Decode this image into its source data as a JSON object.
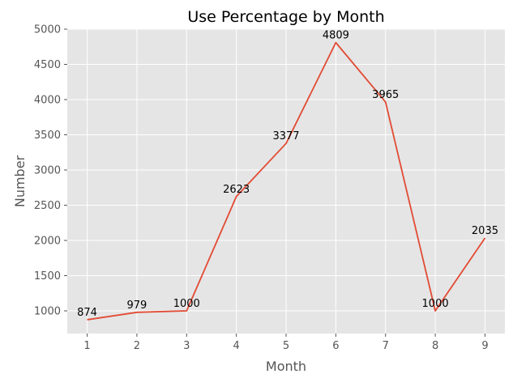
{
  "chart_data": {
    "type": "line",
    "title": "Use Percentage by Month",
    "xlabel": "Month",
    "ylabel": "Number",
    "x": [
      1,
      2,
      3,
      4,
      5,
      6,
      7,
      8,
      9
    ],
    "series": [
      {
        "values": [
          874,
          979,
          1000,
          2623,
          3377,
          4809,
          3965,
          1000,
          2035
        ]
      }
    ],
    "data_labels": [
      "874",
      "979",
      "1000",
      "2623",
      "3377",
      "4809",
      "3965",
      "1000",
      "2035"
    ],
    "x_ticks": [
      1,
      2,
      3,
      4,
      5,
      6,
      7,
      8,
      9
    ],
    "y_ticks": [
      1000,
      1500,
      2000,
      2500,
      3000,
      3500,
      4000,
      4500,
      5000
    ],
    "xlim": [
      0.6,
      9.4
    ],
    "ylim": [
      678,
      5000
    ],
    "grid": true,
    "line_color": "#E24A33",
    "plot_background": "#E5E5E5",
    "grid_color": "#FFFFFF"
  }
}
